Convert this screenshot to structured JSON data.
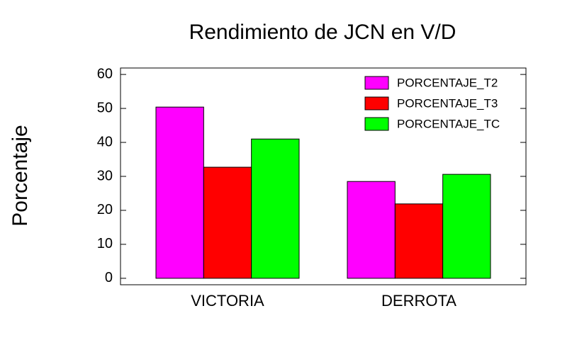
{
  "chart_data": {
    "type": "bar",
    "title": "Rendimiento de JCN en V/D",
    "y_label": "Porcentaje",
    "categories": [
      "VICTORIA",
      "DERROTA"
    ],
    "series": [
      {
        "name": "PORCENTAJE_T2",
        "color": "#ff00ff",
        "values": [
          50.4,
          28.5
        ]
      },
      {
        "name": "PORCENTAJE_T3",
        "color": "#ff0000",
        "values": [
          32.7,
          21.9
        ]
      },
      {
        "name": "PORCENTAJE_TC",
        "color": "#00ff00",
        "values": [
          41.0,
          30.6
        ]
      }
    ],
    "ylim": [
      -1.9,
      61.9
    ],
    "yticks": [
      0,
      10,
      20,
      30,
      40,
      50,
      60
    ],
    "legend": "upper right"
  }
}
